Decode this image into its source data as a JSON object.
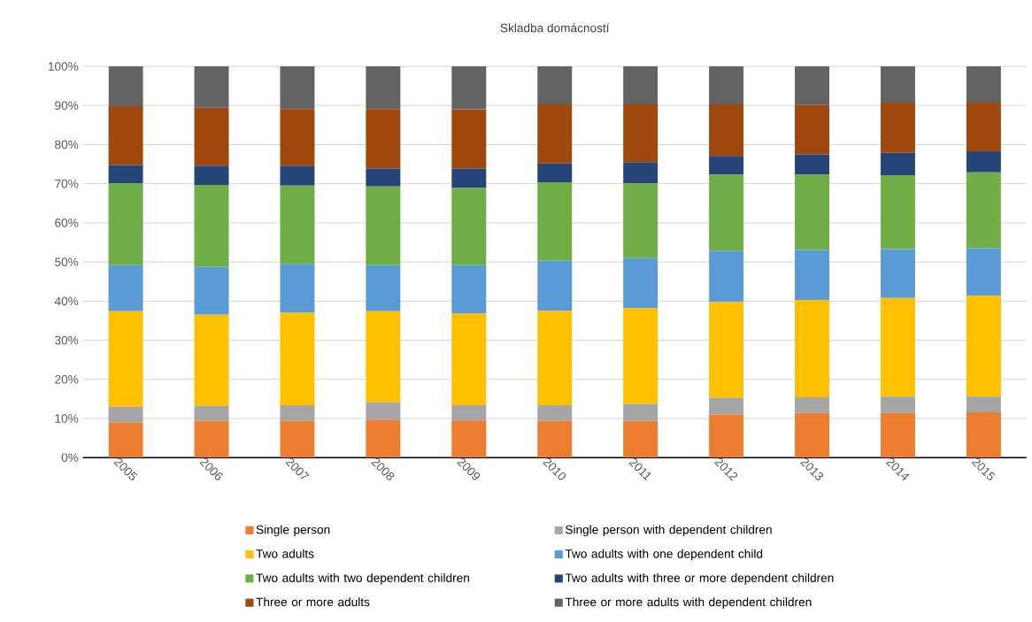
{
  "chart_data": {
    "type": "bar",
    "stacked": true,
    "title": "Skladba domácností",
    "categories": [
      "2005",
      "2006",
      "2007",
      "2008",
      "2009",
      "2010",
      "2011",
      "2012",
      "2013",
      "2014",
      "2015"
    ],
    "series": [
      {
        "name": "Single person",
        "color": "#ed7d31",
        "values": [
          8.9,
          9.4,
          9.4,
          9.7,
          9.5,
          9.4,
          9.4,
          11.0,
          11.4,
          11.4,
          11.6
        ]
      },
      {
        "name": "Single person with dependent children",
        "color": "#a5a5a5",
        "values": [
          4.1,
          3.8,
          4.0,
          4.4,
          3.9,
          4.0,
          4.3,
          4.3,
          4.0,
          4.2,
          4.0
        ]
      },
      {
        "name": "Two adults",
        "color": "#ffc000",
        "values": [
          24.4,
          23.3,
          23.6,
          23.3,
          23.4,
          24.1,
          24.5,
          24.5,
          24.9,
          25.2,
          25.8
        ]
      },
      {
        "name": "Two adults with one dependent child",
        "color": "#5b9bd5",
        "values": [
          11.8,
          12.2,
          12.5,
          11.8,
          12.4,
          12.8,
          12.8,
          13.1,
          12.8,
          12.5,
          12.1
        ]
      },
      {
        "name": "Two adults with two dependent children",
        "color": "#70ad47",
        "values": [
          20.9,
          21.0,
          20.0,
          20.1,
          19.7,
          20.1,
          19.1,
          19.4,
          19.2,
          18.9,
          19.4
        ]
      },
      {
        "name": "Two adults with three or more dependent children",
        "color": "#264478",
        "values": [
          4.7,
          4.9,
          5.1,
          4.6,
          5.0,
          4.8,
          5.4,
          4.8,
          5.2,
          5.7,
          5.4
        ]
      },
      {
        "name": "Three or more adults",
        "color": "#9e480e",
        "values": [
          15.0,
          14.8,
          14.5,
          15.2,
          15.1,
          15.1,
          14.8,
          13.2,
          12.6,
          12.8,
          12.4
        ]
      },
      {
        "name": "Three or more adults with dependent children",
        "color": "#636363",
        "values": [
          10.2,
          10.6,
          10.9,
          10.9,
          11.0,
          9.7,
          9.7,
          9.7,
          9.9,
          9.3,
          9.3
        ]
      }
    ],
    "ylim": [
      0,
      100
    ],
    "yticks": [
      {
        "value": 0,
        "label": "0%"
      },
      {
        "value": 10,
        "label": "10%"
      },
      {
        "value": 20,
        "label": "20%"
      },
      {
        "value": 30,
        "label": "30%"
      },
      {
        "value": 40,
        "label": "40%"
      },
      {
        "value": 50,
        "label": "50%"
      },
      {
        "value": 60,
        "label": "60%"
      },
      {
        "value": 70,
        "label": "70%"
      },
      {
        "value": 80,
        "label": "80%"
      },
      {
        "value": 90,
        "label": "90%"
      },
      {
        "value": 100,
        "label": "100%"
      }
    ],
    "grid": "y",
    "legend": "bottom"
  }
}
